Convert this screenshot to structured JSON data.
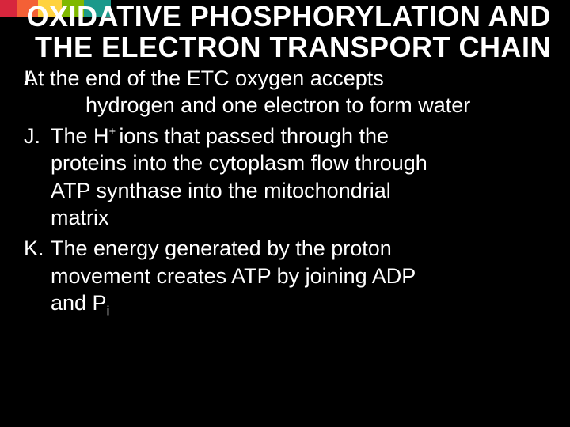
{
  "accent_colors": [
    "#d7263d",
    "#f46036",
    "#ffd23f",
    "#7fb800",
    "#1b998b"
  ],
  "accent_widths": [
    22,
    26,
    30,
    28,
    34
  ],
  "title": "OXIDATIVE PHOSPHORYLATION AND THE ELECTRON TRANSPORT CHAIN",
  "items": {
    "I": {
      "marker": "I.",
      "line1": "At the end of the ETC oxygen accepts",
      "line2": "hydrogen and one electron to form water"
    },
    "J": {
      "marker": "J.",
      "pre": "The H",
      "sup": "+ ",
      "post1": "ions that passed through the",
      "l2": "proteins into the cytoplasm flow through",
      "l3": "ATP synthase into the mitochondrial",
      "l4": "matrix"
    },
    "K": {
      "marker": "K.",
      "l1": "The energy generated by the proton",
      "l2": "movement creates ATP by joining ADP",
      "l3pre": "and P",
      "l3sub": "i"
    }
  }
}
